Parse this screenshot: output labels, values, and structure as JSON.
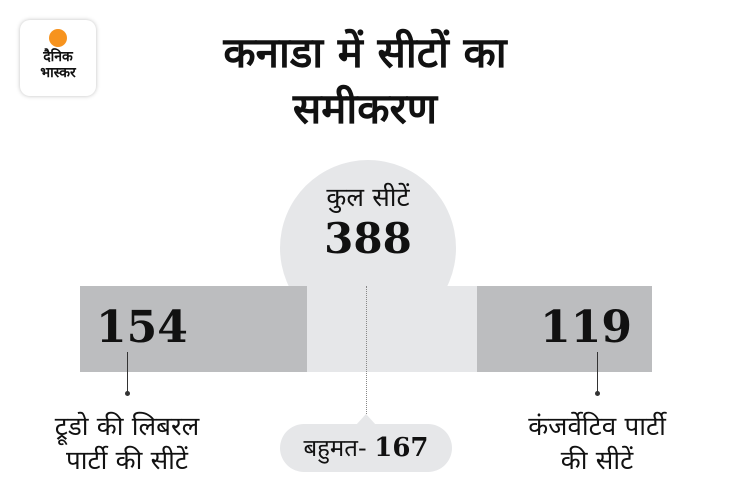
{
  "logo": {
    "line1": "दैनिक",
    "line2": "भास्कर",
    "dot_color": "#f7931e"
  },
  "title": {
    "line1": "कनाडा में सीटों का",
    "line2": "समीकरण"
  },
  "total": {
    "label": "कुल सीटें",
    "value": "388"
  },
  "majority": {
    "label": "बहुमत-",
    "value": "167"
  },
  "colors": {
    "party_segment": "#bcbdbf",
    "remainder": "#e6e7e9"
  },
  "chart_data": {
    "type": "bar",
    "orientation": "horizontal-stacked",
    "total": 388,
    "majority": 167,
    "categories": [
      "ट्रूडो की लिबरल पार्टी की सीटें",
      "कंजर्वेटिव पार्टी की सीटें"
    ],
    "values": [
      154,
      119
    ],
    "value_labels": [
      "154",
      "119"
    ],
    "labels": {
      "left_line1": "ट्रूडो की लिबरल",
      "left_line2": "पार्टी की सीटें",
      "right_line1": "कंजर्वेटिव पार्टी",
      "right_line2": "की सीटें"
    }
  }
}
